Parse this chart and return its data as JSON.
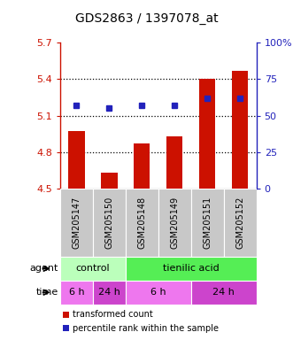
{
  "title": "GDS2863 / 1397078_at",
  "samples": [
    "GSM205147",
    "GSM205150",
    "GSM205148",
    "GSM205149",
    "GSM205151",
    "GSM205152"
  ],
  "bar_values": [
    4.97,
    4.63,
    4.87,
    4.93,
    5.4,
    5.47
  ],
  "percentile_values": [
    57,
    55,
    57,
    57,
    62,
    62
  ],
  "ylim_left": [
    4.5,
    5.7
  ],
  "ylim_right": [
    0,
    100
  ],
  "yticks_left": [
    4.5,
    4.8,
    5.1,
    5.4,
    5.7
  ],
  "ytick_labels_left": [
    "4.5",
    "4.8",
    "5.1",
    "5.4",
    "5.7"
  ],
  "yticks_right": [
    0,
    25,
    50,
    75,
    100
  ],
  "ytick_labels_right": [
    "0",
    "25",
    "50",
    "75",
    "100%"
  ],
  "bar_color": "#cc1100",
  "dot_color": "#2222bb",
  "agent_row": [
    {
      "label": "control",
      "start": 0,
      "end": 2,
      "color": "#bbffbb"
    },
    {
      "label": "tienilic acid",
      "start": 2,
      "end": 6,
      "color": "#55ee55"
    }
  ],
  "time_row": [
    {
      "label": "6 h",
      "start": 0,
      "end": 1,
      "color": "#ee77ee"
    },
    {
      "label": "24 h",
      "start": 1,
      "end": 2,
      "color": "#cc44cc"
    },
    {
      "label": "6 h",
      "start": 2,
      "end": 4,
      "color": "#ee77ee"
    },
    {
      "label": "24 h",
      "start": 4,
      "end": 6,
      "color": "#cc44cc"
    }
  ],
  "legend_red_label": "transformed count",
  "legend_blue_label": "percentile rank within the sample",
  "bar_width": 0.5,
  "dotted_gridlines": [
    4.8,
    5.1,
    5.4
  ],
  "left_axis_color": "#cc1100",
  "right_axis_color": "#2222bb",
  "xlabel_bg_color": "#c8c8c8",
  "plot_bg_color": "#ffffff"
}
